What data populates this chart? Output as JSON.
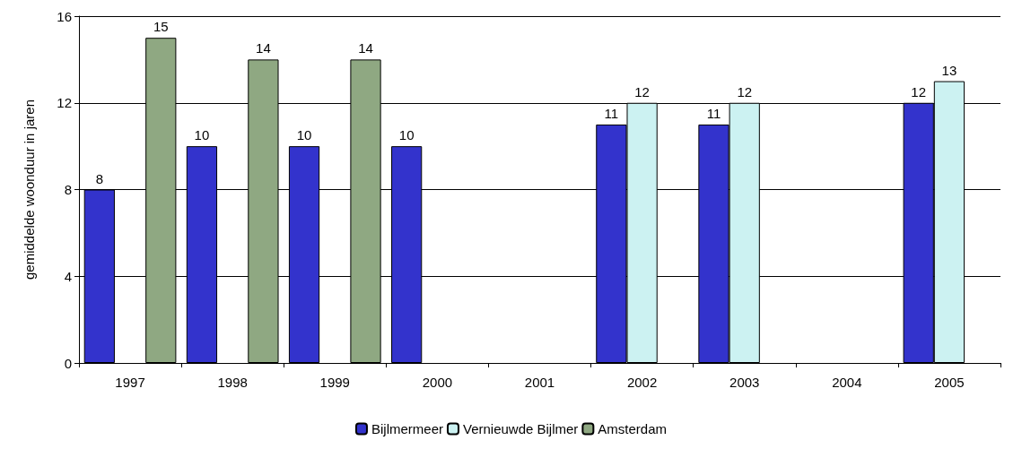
{
  "chart_data": {
    "type": "bar",
    "ylabel": "gemiddelde woonduur in jaren",
    "categories": [
      "1997",
      "1998",
      "1999",
      "2000",
      "2001",
      "2002",
      "2003",
      "2004",
      "2005"
    ],
    "series": [
      {
        "name": "Bijlmermeer",
        "color": "#3333cc",
        "values": [
          8,
          10,
          10,
          10,
          null,
          11,
          11,
          null,
          12
        ]
      },
      {
        "name": "Vernieuwde Bijlmer",
        "color": "#ccf2f2",
        "values": [
          null,
          null,
          null,
          null,
          null,
          12,
          12,
          null,
          13
        ]
      },
      {
        "name": "Amsterdam",
        "color": "#8fa882",
        "values": [
          15,
          14,
          14,
          null,
          null,
          null,
          null,
          null,
          null
        ]
      }
    ],
    "ylim": [
      0,
      16
    ],
    "yticks": [
      0,
      4,
      8,
      12,
      16
    ],
    "grid": "y",
    "legend": "bottom",
    "data_labels": true
  }
}
